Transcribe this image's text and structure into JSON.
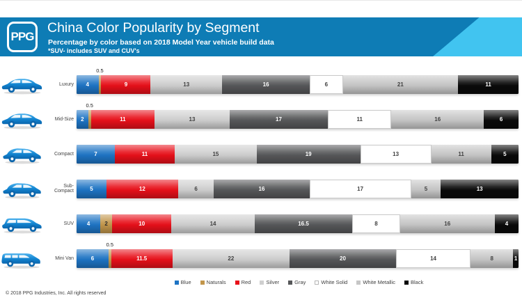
{
  "header": {
    "logo_text": "PPG",
    "title": "China Color Popularity by Segment",
    "subtitle": "Percentage by color based on 2018 Model Year vehicle build data",
    "footnote": "*SUV- includes SUV and CUV's",
    "band_color": "#0E7CB5",
    "accent_color": "#41C4F0"
  },
  "footer": {
    "copyright": "© 2018 PPG Industries, Inc. All rights reserved"
  },
  "chart_data": {
    "type": "bar",
    "orientation": "horizontal-stacked",
    "unit": "percent",
    "title": "China Color Popularity by Segment",
    "categories": [
      "Blue",
      "Naturals",
      "Red",
      "Silver",
      "Gray",
      "White Solid",
      "White Metallic",
      "Black"
    ],
    "colors": {
      "Blue": "#1E74C4",
      "Naturals": "#C2964B",
      "Red": "#E8101A",
      "Silver": "#CFCFCF",
      "Gray": "#57585A",
      "White Solid": "#FFFFFF",
      "White Metallic": "#C6C6C6",
      "Black": "#0A0A0A"
    },
    "label_colors": {
      "Blue": "#FFFFFF",
      "Naturals": "#2B2B2B",
      "Red": "#FFFFFF",
      "Silver": "#3F3F3F",
      "Gray": "#FFFFFF",
      "White Solid": "#3F3F3F",
      "White Metallic": "#3F3F3F",
      "Black": "#FFFFFF"
    },
    "small_value_label_threshold": 1,
    "legend_position": "bottom",
    "rows": [
      {
        "label": "Luxury",
        "icon": "luxury-sedan-icon",
        "values": [
          4,
          0.5,
          9,
          13,
          16,
          6,
          21,
          11
        ]
      },
      {
        "label": "Mid-Size",
        "icon": "midsize-sedan-icon",
        "values": [
          2,
          0.5,
          11,
          13,
          17,
          11,
          16,
          6
        ]
      },
      {
        "label": "Compact",
        "icon": "compact-car-icon",
        "values": [
          7,
          null,
          11,
          15,
          19,
          13,
          11,
          5
        ]
      },
      {
        "label": "Sub-Compact",
        "icon": "subcompact-car-icon",
        "values": [
          5,
          null,
          12,
          6,
          16,
          17,
          5,
          13
        ]
      },
      {
        "label": "SUV",
        "icon": "suv-icon",
        "values": [
          4,
          2,
          10,
          14,
          16.5,
          8,
          16,
          4
        ]
      },
      {
        "label": "Mini Van",
        "icon": "minivan-icon",
        "values": [
          6,
          0.5,
          11.5,
          22,
          20,
          14,
          8,
          1
        ]
      }
    ]
  }
}
